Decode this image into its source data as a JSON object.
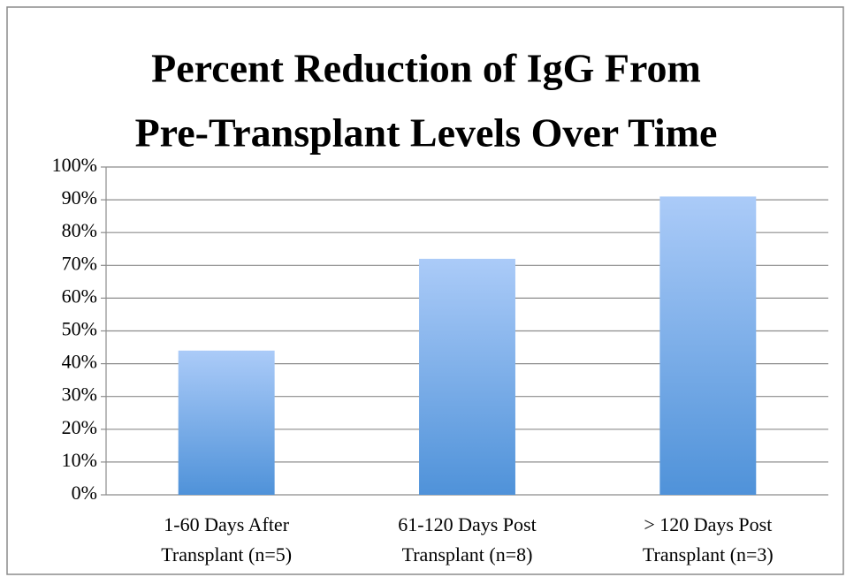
{
  "chart_data": {
    "type": "bar",
    "title": [
      "Percent Reduction of IgG From",
      "Pre-Transplant Levels Over Time"
    ],
    "categories": [
      [
        "1-60 Days After",
        "Transplant (n=5)"
      ],
      [
        "61-120 Days Post",
        "Transplant (n=8)"
      ],
      [
        "> 120 Days Post",
        "Transplant (n=3)"
      ]
    ],
    "values": [
      44,
      72,
      91
    ],
    "color": "#4f92d9",
    "ylim": [
      0,
      100
    ],
    "yticks": [
      {
        "value": 0,
        "label": "0%"
      },
      {
        "value": 10,
        "label": "10%"
      },
      {
        "value": 20,
        "label": "20%"
      },
      {
        "value": 30,
        "label": "30%"
      },
      {
        "value": 40,
        "label": "40%"
      },
      {
        "value": 50,
        "label": "50%"
      },
      {
        "value": 60,
        "label": "60%"
      },
      {
        "value": 70,
        "label": "70%"
      },
      {
        "value": 80,
        "label": "80%"
      },
      {
        "value": 90,
        "label": "90%"
      },
      {
        "value": 100,
        "label": "100%"
      }
    ],
    "grid": true
  }
}
